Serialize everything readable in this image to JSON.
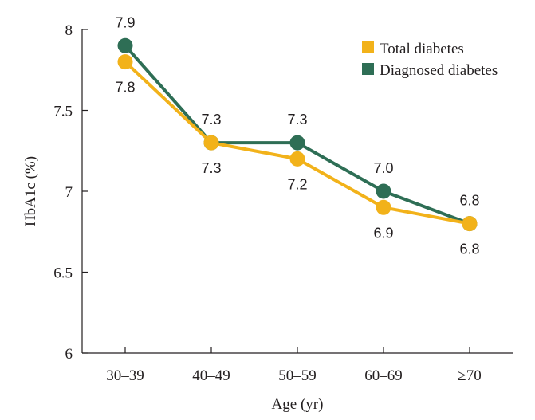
{
  "chart_data": {
    "type": "line",
    "title": "",
    "xlabel": "Age (yr)",
    "ylabel": "HbA1c (%)",
    "categories": [
      "30–39",
      "40–49",
      "50–59",
      "60–69",
      "≥70"
    ],
    "ylim": [
      6,
      8
    ],
    "yticks": [
      6,
      6.5,
      7,
      7.5,
      8
    ],
    "ytick_labels": [
      "6",
      "6.5",
      "7",
      "7.5",
      "8"
    ],
    "grid": false,
    "legend_position": "top-right",
    "series": [
      {
        "name": "Total diabetes",
        "color": "#f2b21a",
        "values": [
          7.8,
          7.3,
          7.2,
          6.9,
          6.8
        ],
        "labels": [
          "7.8",
          "7.3",
          "7.2",
          "6.9",
          "6.8"
        ],
        "label_position": "below"
      },
      {
        "name": "Diagnosed diabetes",
        "color": "#2e6e55",
        "values": [
          7.9,
          7.3,
          7.3,
          7.0,
          6.8
        ],
        "labels": [
          "7.9",
          "7.3",
          "7.3",
          "7.0",
          "6.8"
        ],
        "label_position": "above"
      }
    ]
  }
}
